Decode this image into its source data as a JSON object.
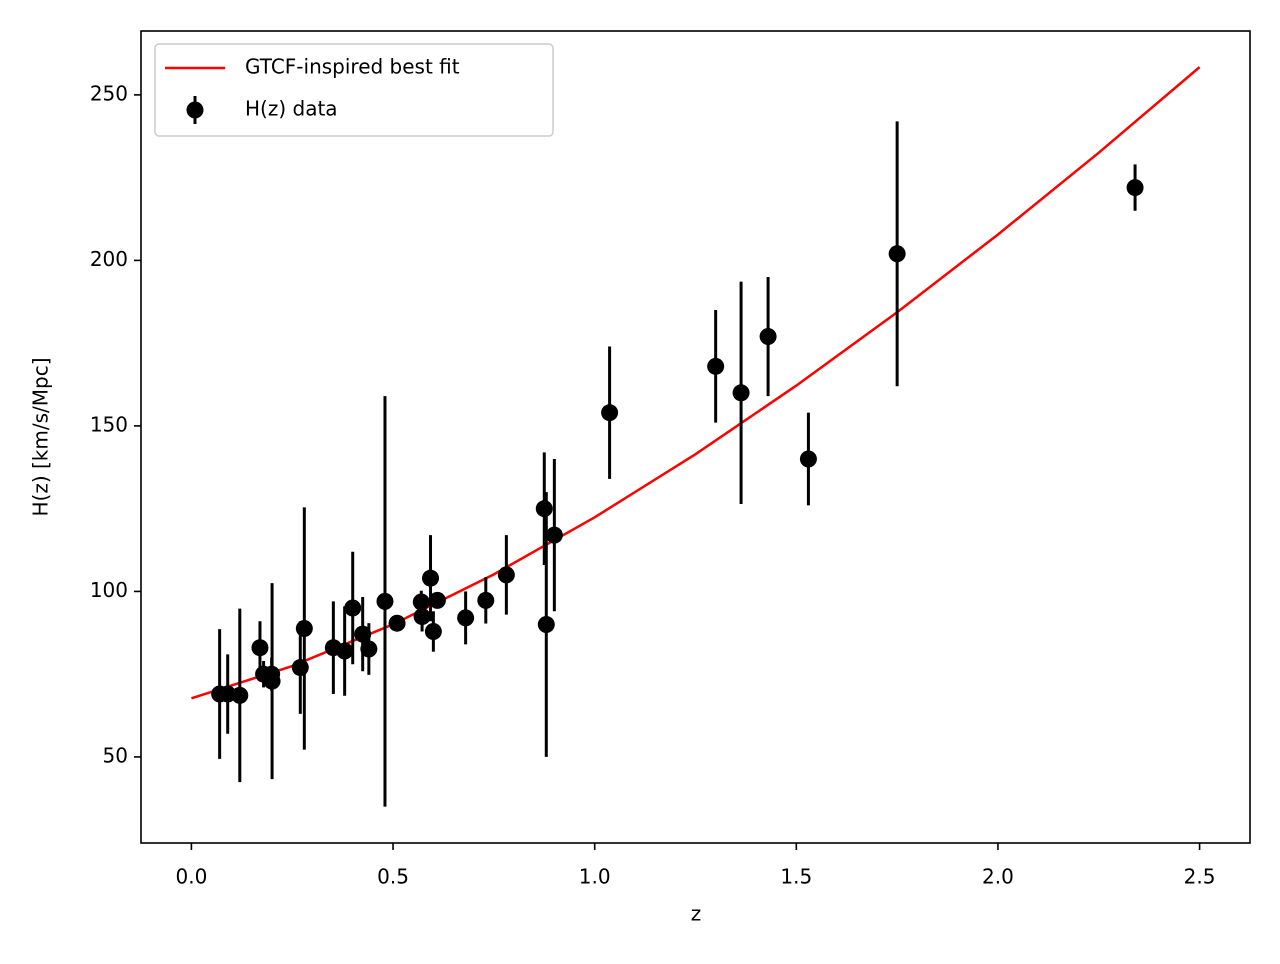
{
  "chart_data": {
    "type": "scatter",
    "xlabel": "z",
    "ylabel": "H(z) [km/s/Mpc]",
    "xlim": [
      -0.125,
      2.625
    ],
    "ylim": [
      24,
      269.3
    ],
    "xticks": [
      {
        "value": 0,
        "label": "0.0"
      },
      0.5,
      {
        "value": 1,
        "label": "1.0"
      },
      1.5,
      {
        "value": 2,
        "label": "2.0"
      },
      2.5
    ],
    "yticks": [
      50,
      100,
      150,
      200,
      250
    ],
    "legend": "upper left",
    "series": [
      {
        "name": "GTCF-inspired best fit",
        "type": "line",
        "color": "#ff0000",
        "x": [
          0,
          0.25,
          0.5,
          0.75,
          1,
          1.25,
          1.5,
          1.75,
          2,
          2.25,
          2.5
        ],
        "values": [
          67.7,
          77.45,
          90.06,
          105.15,
          122.39,
          141.47,
          162.18,
          184.34,
          207.83,
          232.54,
          258.39
        ]
      },
      {
        "name": "H(z) data",
        "type": "errorbar",
        "color": "#000000",
        "x": [
          0.07,
          0.09,
          0.12,
          0.17,
          0.179,
          0.199,
          0.2,
          0.27,
          0.28,
          0.352,
          0.38,
          0.4,
          0.4247,
          0.44,
          0.48,
          0.51,
          0.57,
          0.572,
          0.5929,
          0.6,
          0.61,
          0.68,
          0.73,
          0.781,
          0.875,
          0.88,
          0.9,
          1.037,
          1.3,
          1.363,
          1.43,
          1.53,
          1.75,
          2.34
        ],
        "values": [
          69,
          69,
          68.6,
          83,
          75,
          75,
          72.9,
          77,
          88.8,
          83,
          82,
          95,
          87.1,
          82.6,
          97,
          90.4,
          96.8,
          92.4,
          104,
          87.9,
          97.3,
          92,
          97.3,
          105,
          125,
          90,
          117,
          154,
          168,
          160,
          177,
          140,
          202,
          222
        ],
        "errors": [
          19.6,
          12,
          26.2,
          8,
          4,
          5,
          29.6,
          14,
          36.6,
          14,
          13.5,
          17,
          11.2,
          7.8,
          62,
          1.9,
          3.4,
          4.5,
          13,
          6.1,
          2.1,
          8,
          7,
          12,
          17,
          40,
          23,
          20,
          17,
          33.6,
          18,
          14,
          40,
          7
        ]
      }
    ]
  }
}
